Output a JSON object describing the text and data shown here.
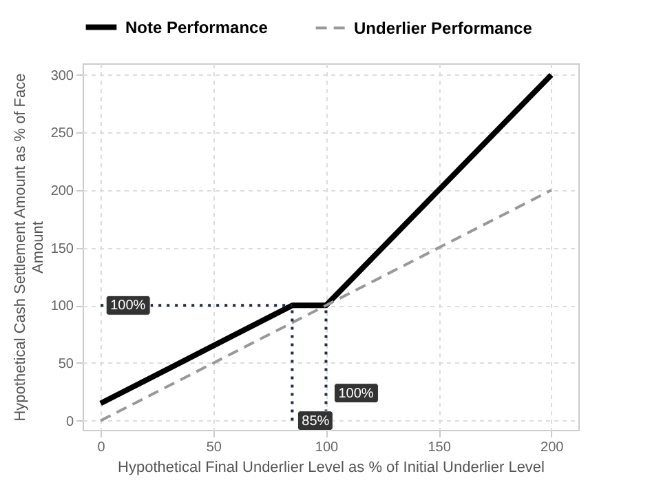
{
  "chart_data": {
    "type": "line",
    "xlabel": "Hypothetical Final Underlier Level as % of Initial Underlier Level",
    "ylabel": "Hypothetical Cash Settlement Amount as % of Face Amount",
    "xlim": [
      -8,
      212
    ],
    "ylim": [
      -8,
      310
    ],
    "xticks": [
      0,
      50,
      100,
      150,
      200
    ],
    "yticks": [
      0,
      50,
      100,
      150,
      200,
      250,
      300
    ],
    "grid": true,
    "legend": "top",
    "series": [
      {
        "name": "Note Performance",
        "color": "#000000",
        "line_style": "solid",
        "x": [
          0,
          85,
          100,
          200
        ],
        "values": [
          15,
          100,
          100,
          300
        ]
      },
      {
        "name": "Underlier Performance",
        "color": "#999999",
        "line_style": "dashed",
        "x": [
          0,
          200
        ],
        "values": [
          0,
          200
        ]
      },
      {
        "color": "#1f2a44",
        "line_style": "dotted",
        "x": [
          0,
          85
        ],
        "values": [
          100,
          100
        ]
      },
      {
        "color": "#1f2a44",
        "line_style": "dotted",
        "x": [
          85,
          85
        ],
        "values": [
          0,
          100
        ]
      },
      {
        "color": "#1f2a44",
        "line_style": "dotted",
        "x": [
          100,
          100
        ],
        "values": [
          0,
          100
        ]
      }
    ],
    "annotations": [
      {
        "text": "100%",
        "x": 0,
        "y": 100
      },
      {
        "text": "85%",
        "x": 85,
        "y": 0
      },
      {
        "text": "100%",
        "x": 100,
        "y": 0
      }
    ]
  }
}
